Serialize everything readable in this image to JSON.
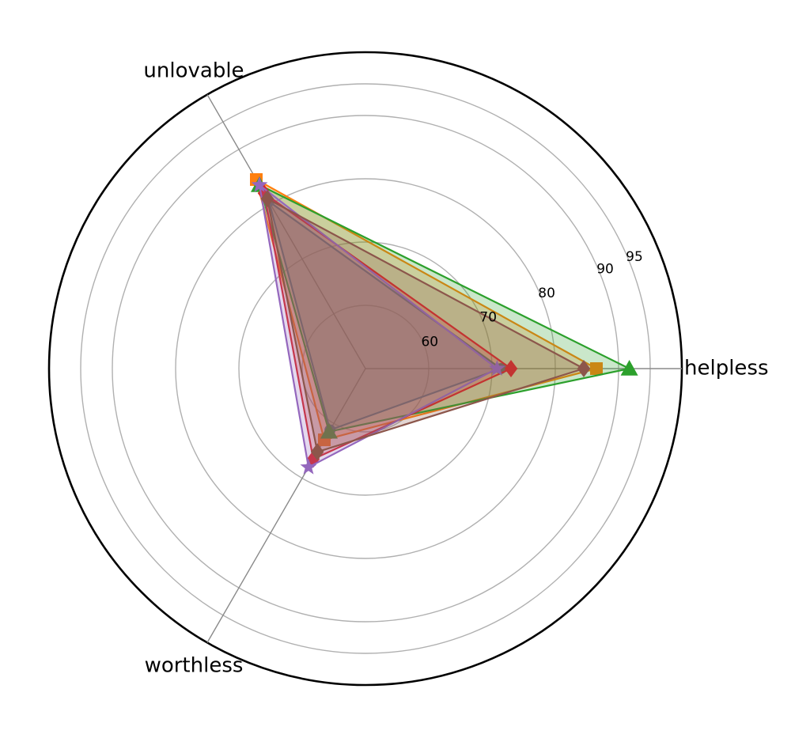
{
  "chart_data": {
    "type": "radar",
    "title": "",
    "axes": [
      "helpless",
      "unlovable",
      "worthless"
    ],
    "rlim": [
      50,
      100
    ],
    "rticks": [
      60,
      70,
      80,
      90,
      95
    ],
    "rtick_labels": [
      "60",
      "70",
      "80",
      "90",
      "95"
    ],
    "grid": true,
    "legend": "none",
    "series": [
      {
        "values": [
          71.4,
          80.5,
          61.2
        ],
        "color": "#1f77b4",
        "marker": "circle"
      },
      {
        "values": [
          86.5,
          84.5,
          63.0
        ],
        "color": "#ff7f0e",
        "marker": "square"
      },
      {
        "values": [
          91.7,
          83.5,
          61.5
        ],
        "color": "#2ca02c",
        "marker": "triangle"
      },
      {
        "values": [
          73.0,
          82.0,
          66.5
        ],
        "color": "#d62728",
        "marker": "diamond"
      },
      {
        "values": [
          70.8,
          83.5,
          68.0
        ],
        "color": "#9467bd",
        "marker": "star"
      },
      {
        "values": [
          84.5,
          81.0,
          65.2
        ],
        "color": "#8c564b",
        "marker": "diamond"
      }
    ]
  }
}
